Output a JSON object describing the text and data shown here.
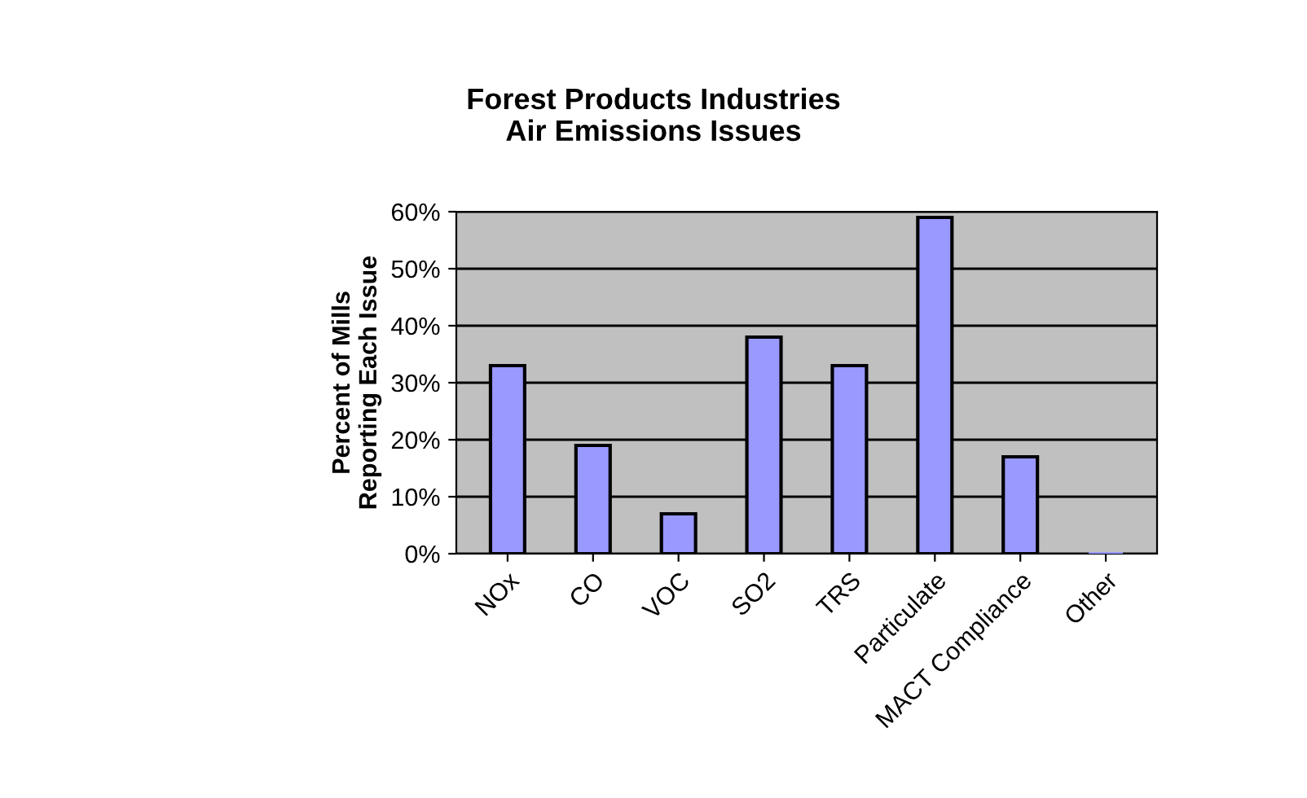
{
  "chart_data": {
    "type": "bar",
    "title": "Forest Products Industries\nAir Emissions Issues",
    "ylabel": "Percent of Mills\nReporting Each Issue",
    "categories": [
      "NOx",
      "CO",
      "VOC",
      "SO2",
      "TRS",
      "Particulate",
      "MACT Compliance",
      "Other"
    ],
    "values": [
      33,
      19,
      7,
      38,
      33,
      59,
      17,
      0
    ],
    "color": "#9999ff",
    "ylim": [
      0,
      60
    ],
    "yticks": [
      {
        "value": 0,
        "label": "0%"
      },
      {
        "value": 10,
        "label": "10%"
      },
      {
        "value": 20,
        "label": "20%"
      },
      {
        "value": 30,
        "label": "30%"
      },
      {
        "value": 40,
        "label": "40%"
      },
      {
        "value": 50,
        "label": "50%"
      },
      {
        "value": 60,
        "label": "60%"
      }
    ],
    "grid": "y"
  }
}
